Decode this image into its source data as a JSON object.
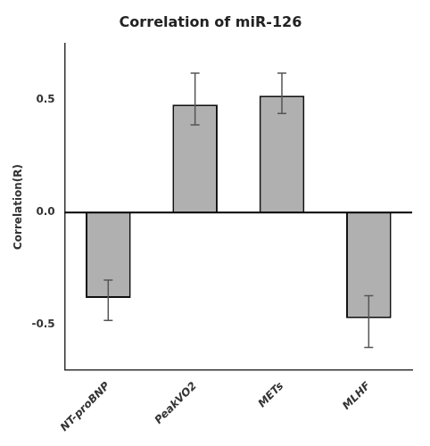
{
  "chart_data": {
    "type": "bar",
    "title": "Correlation of miR-126",
    "ylabel": "Correlation(R)",
    "categories": [
      "NT-proBNP",
      "PeakVO2",
      "METs",
      "MLHF"
    ],
    "values": [
      -0.38,
      0.48,
      0.52,
      -0.47
    ],
    "errors_pos": [
      0.08,
      0.14,
      0.1,
      0.1
    ],
    "errors_neg": [
      0.1,
      0.09,
      0.08,
      0.13
    ],
    "color": "#b0b0b0",
    "ylim": [
      -0.7,
      0.75
    ],
    "yticks": [
      -0.5,
      {
        "value": 0,
        "label": "0.0"
      },
      0.5
    ],
    "grid": false
  }
}
